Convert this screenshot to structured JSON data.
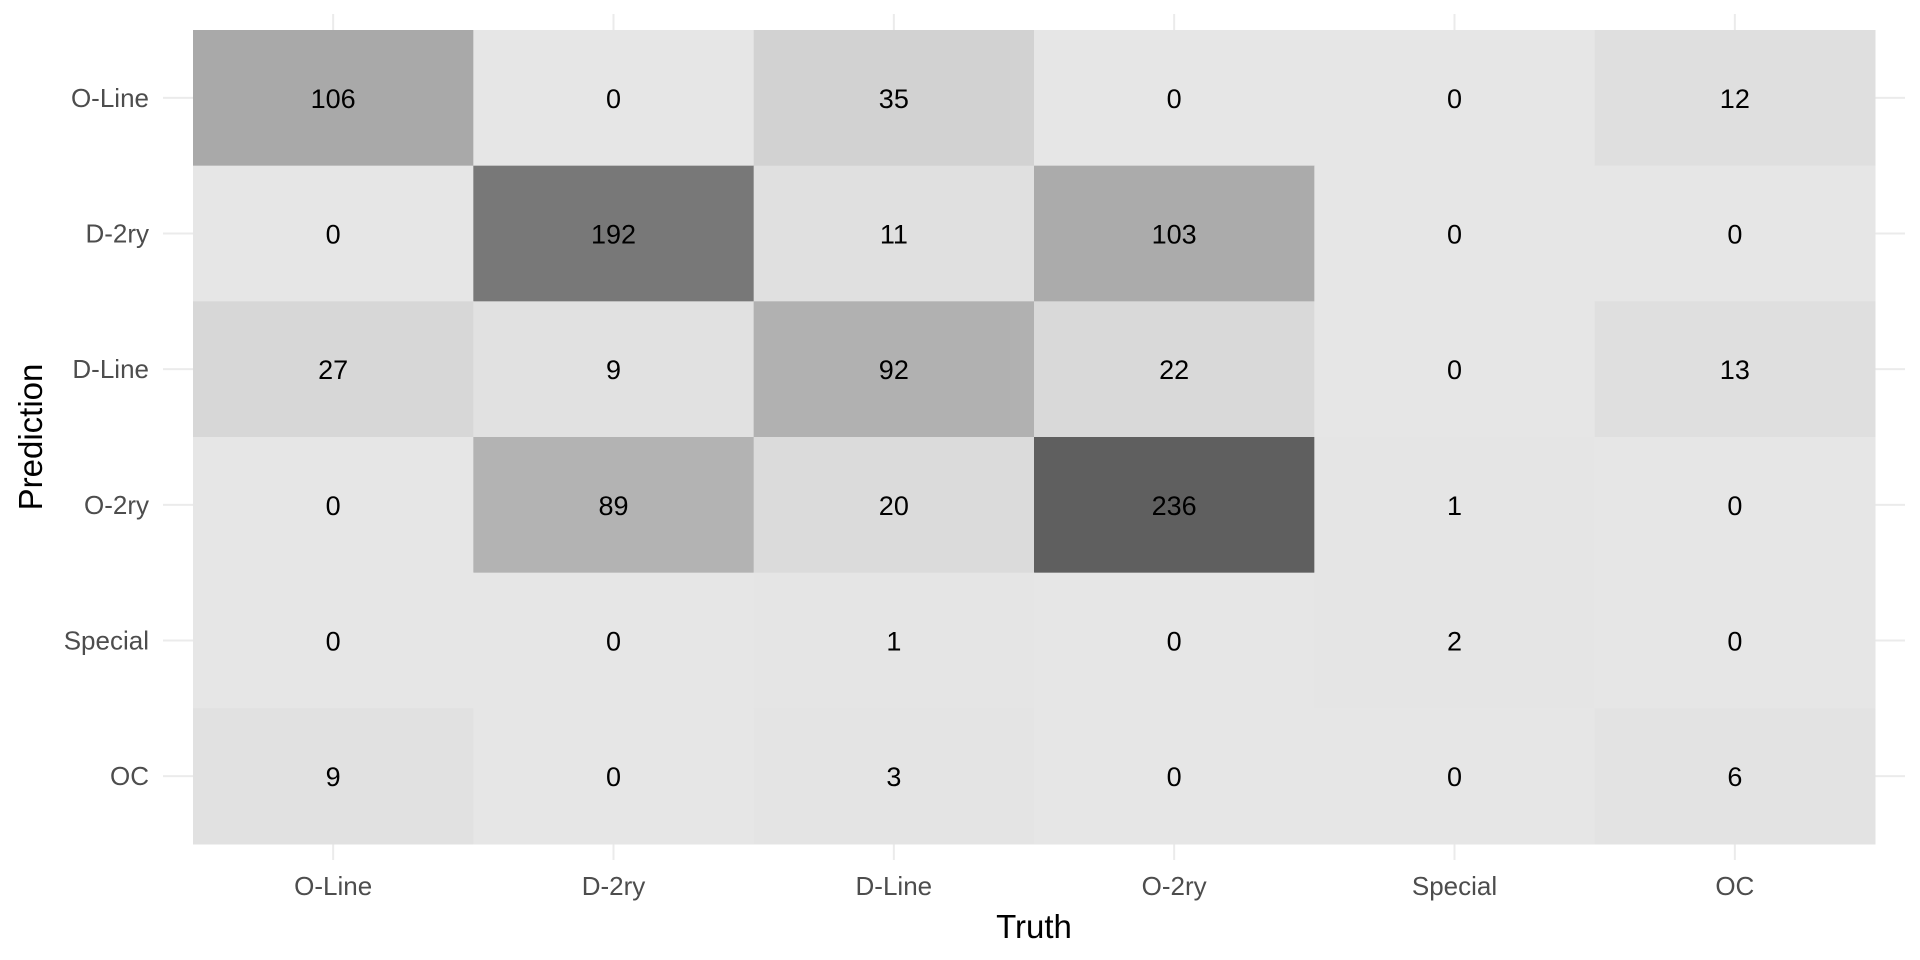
{
  "chart_data": {
    "type": "heatmap",
    "title": "",
    "xlabel": "Truth",
    "ylabel": "Prediction",
    "x_categories": [
      "O-Line",
      "D-2ry",
      "D-Line",
      "O-2ry",
      "Special",
      "OC"
    ],
    "y_categories": [
      "O-Line",
      "D-2ry",
      "D-Line",
      "O-2ry",
      "Special",
      "OC"
    ],
    "values": [
      [
        106,
        0,
        35,
        0,
        0,
        12
      ],
      [
        0,
        192,
        11,
        103,
        0,
        0
      ],
      [
        27,
        9,
        92,
        22,
        0,
        13
      ],
      [
        0,
        89,
        20,
        236,
        1,
        0
      ],
      [
        0,
        0,
        1,
        0,
        2,
        0
      ],
      [
        9,
        0,
        3,
        0,
        0,
        6
      ]
    ],
    "color_low": "#e6e6e6",
    "color_high": "#5f5f5f",
    "legend": "none",
    "grid": true
  }
}
